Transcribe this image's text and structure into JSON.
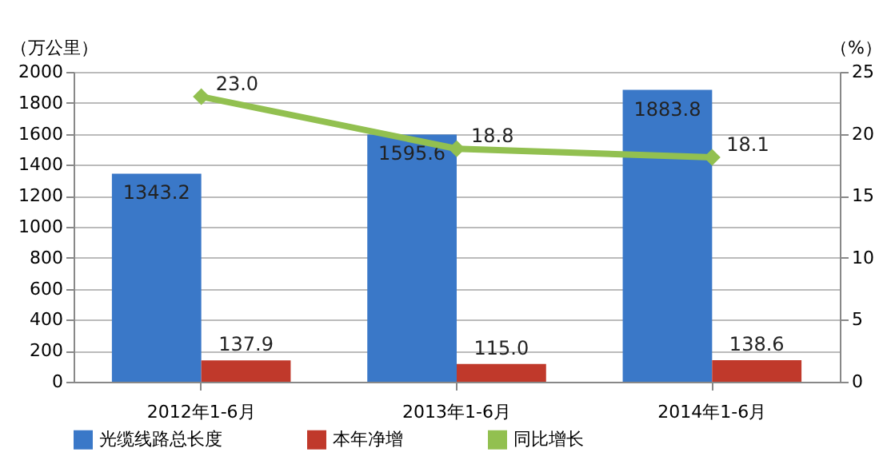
{
  "chart_data": {
    "type": "bar",
    "categories": [
      "2012年1-6月",
      "2013年1-6月",
      "2014年1-6月"
    ],
    "series": [
      {
        "name": "光缆线路总长度",
        "color": "#3a78c8",
        "values": [
          1343.2,
          1595.6,
          1883.8
        ],
        "value_labels": [
          "1343.2",
          "1595.6",
          "1883.8"
        ]
      },
      {
        "name": "本年净增",
        "color": "#c0392b",
        "values": [
          137.9,
          115,
          138.6
        ],
        "value_labels": [
          "137.9",
          "115.0",
          "138.6"
        ]
      },
      {
        "name": "同比增长",
        "type": "line",
        "axis": "y2",
        "color": "#92c050",
        "values": [
          23,
          18.8,
          18.1
        ],
        "value_labels": [
          "23.0",
          "18.8",
          "18.1"
        ]
      }
    ],
    "ylabel": "（万公里）",
    "y2label": "（%）",
    "ylim": [
      0,
      2000
    ],
    "yticks": [
      0,
      200,
      400,
      600,
      800,
      1000,
      1200,
      1400,
      1600,
      1800,
      2000
    ],
    "y2lim": [
      0,
      25
    ],
    "y2ticks": [
      0,
      5,
      10,
      15,
      20,
      25
    ],
    "grid": "y",
    "legend": "bottom",
    "marker": "diamond",
    "line_style": "solid"
  }
}
